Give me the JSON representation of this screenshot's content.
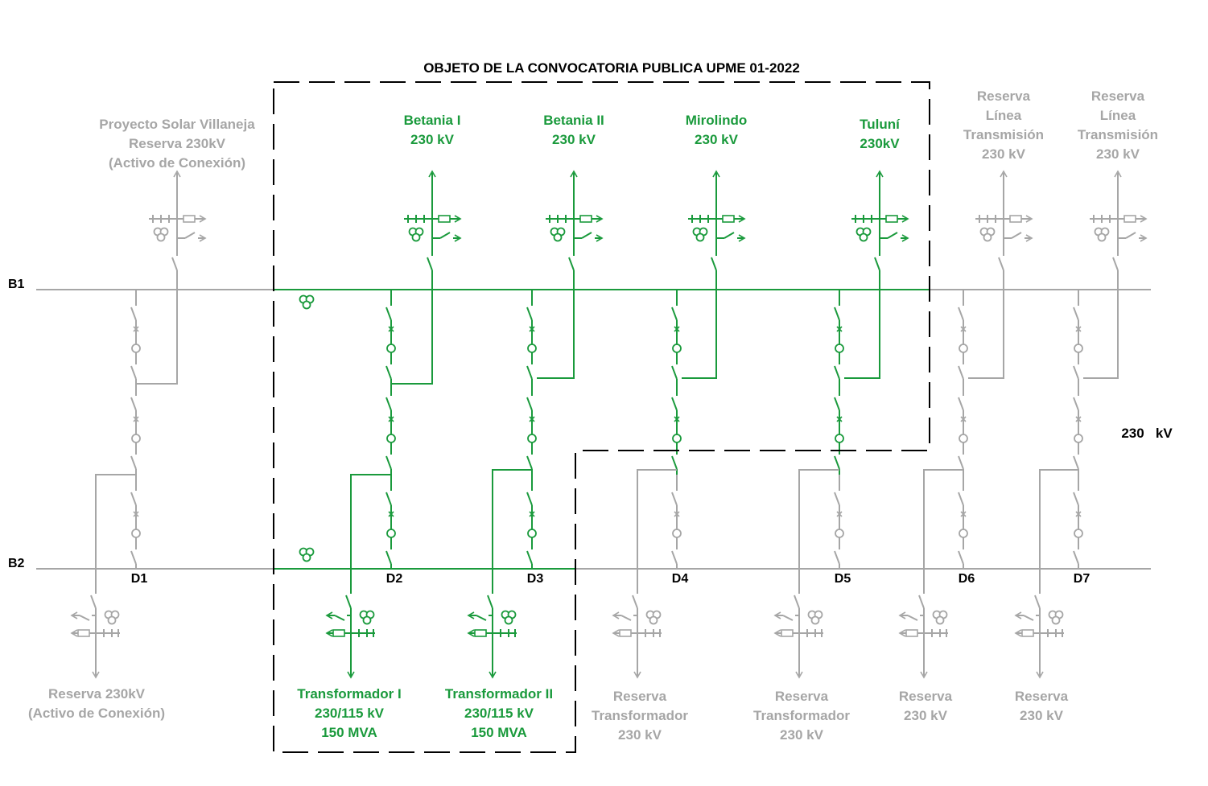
{
  "title": "OBJETO DE LA CONVOCATORIA PUBLICA UPME 01-2022",
  "voltage_label": "230   kV",
  "colors": {
    "green": "#1a9a3c",
    "gray": "#a6a6a6",
    "black": "#000000"
  },
  "buses": [
    {
      "id": "b1",
      "label": "B1"
    },
    {
      "id": "b2",
      "label": "B2"
    }
  ],
  "diameters": [
    {
      "id": "d1",
      "label": "D1",
      "status": "gray"
    },
    {
      "id": "d2",
      "label": "D2",
      "status": "green"
    },
    {
      "id": "d3",
      "label": "D3",
      "status": "green"
    },
    {
      "id": "d4",
      "label": "D4",
      "status": "mixed"
    },
    {
      "id": "d5",
      "label": "D5",
      "status": "mixed"
    },
    {
      "id": "d6",
      "label": "D6",
      "status": "gray"
    },
    {
      "id": "d7",
      "label": "D7",
      "status": "gray"
    }
  ],
  "top_bays": [
    {
      "id": "villaneja",
      "lines": [
        "Proyecto Solar Villaneja",
        "Reserva 230kV",
        "(Activo de Conexión)"
      ],
      "status": "gray"
    },
    {
      "id": "betania-1",
      "lines": [
        "Betania I",
        "230  kV"
      ],
      "status": "green"
    },
    {
      "id": "betania-2",
      "lines": [
        "Betania II",
        "230  kV"
      ],
      "status": "green"
    },
    {
      "id": "mirolindo",
      "lines": [
        "Mirolindo",
        "230  kV"
      ],
      "status": "green"
    },
    {
      "id": "tuluni",
      "lines": [
        "Tuluní",
        "230kV"
      ],
      "status": "green"
    },
    {
      "id": "reserva-linea-1",
      "lines": [
        "Reserva",
        "Línea",
        "Transmisión",
        "230 kV"
      ],
      "status": "gray"
    },
    {
      "id": "reserva-linea-2",
      "lines": [
        "Reserva",
        "Línea",
        "Transmisión",
        "230 kV"
      ],
      "status": "gray"
    }
  ],
  "bottom_bays": [
    {
      "id": "reserva-d1",
      "lines": [
        "Reserva 230kV",
        "(Activo de Conexión)"
      ],
      "status": "gray"
    },
    {
      "id": "transformador-1",
      "lines": [
        "Transformador I",
        "230/115 kV",
        "150 MVA"
      ],
      "status": "green"
    },
    {
      "id": "transformador-2",
      "lines": [
        "Transformador II",
        "230/115 kV",
        "150 MVA"
      ],
      "status": "green"
    },
    {
      "id": "reserva-trafo-1",
      "lines": [
        "Reserva",
        "Transformador",
        "230 kV"
      ],
      "status": "gray"
    },
    {
      "id": "reserva-trafo-2",
      "lines": [
        "Reserva",
        "Transformador",
        "230 kV"
      ],
      "status": "gray"
    },
    {
      "id": "reserva-d6",
      "lines": [
        "Reserva",
        "230 kV"
      ],
      "status": "gray"
    },
    {
      "id": "reserva-d7",
      "lines": [
        "Reserva",
        "230 kV"
      ],
      "status": "gray"
    }
  ]
}
